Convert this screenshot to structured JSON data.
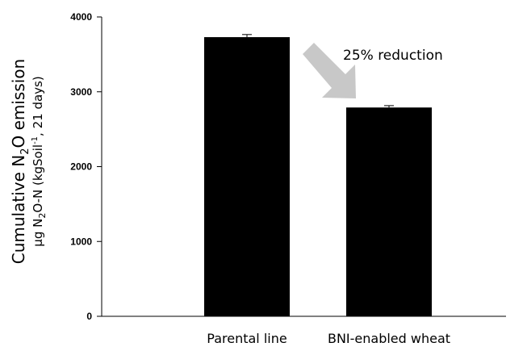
{
  "chart_data": {
    "type": "bar",
    "categories": [
      "Parental line",
      "BNI-enabled wheat"
    ],
    "values": [
      3730,
      2790
    ],
    "errors": [
      35,
      25
    ],
    "ylim": [
      0,
      4000
    ],
    "yticks": [
      "0",
      "1000",
      "2000",
      "3000",
      "4000"
    ],
    "ylabel_line1_parts": [
      "Cumulative N",
      "2",
      "O emission"
    ],
    "ylabel_line2_parts": [
      "μg N",
      "2",
      "O-N (kgSoil",
      "-1",
      ", 21 days)"
    ],
    "annotation": "25% reduction",
    "colors": {
      "bar": "#000000",
      "arrow": "#c8c8c8"
    }
  }
}
